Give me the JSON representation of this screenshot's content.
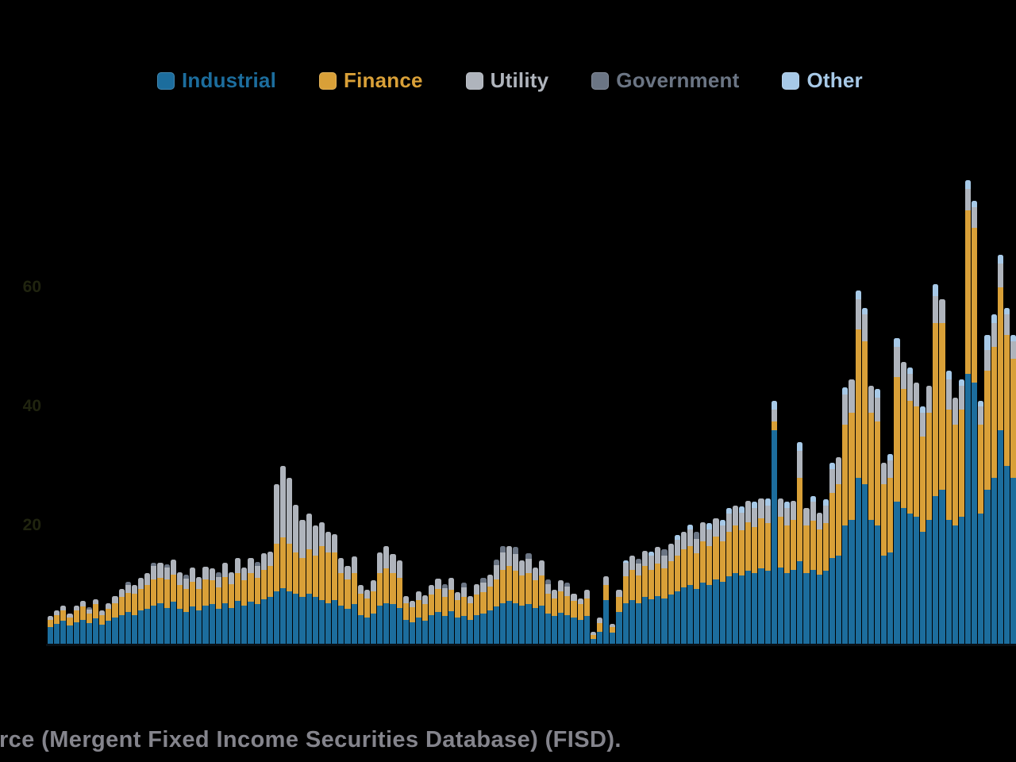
{
  "legend": {
    "items": [
      {
        "label": "Industrial",
        "color": "#1c6d9d"
      },
      {
        "label": "Finance",
        "color": "#d9a038"
      },
      {
        "label": "Utility",
        "color": "#afb4bc"
      },
      {
        "label": "Government",
        "color": "#6b7584"
      },
      {
        "label": "Other",
        "color": "#a7c9e7"
      }
    ]
  },
  "caption": {
    "text": "Source (Mergent Fixed Income Securities Database) (FISD)."
  },
  "chart_data": {
    "type": "bar",
    "stacked": true,
    "title": "",
    "xlabel": "",
    "ylabel": "",
    "ylim": [
      0,
      80
    ],
    "y_ticks": [
      20,
      40,
      60
    ],
    "x_axis_labels_visible": false,
    "gridlines": false,
    "legend_position": "top",
    "series": [
      {
        "name": "Industrial",
        "color": "#1c6d9d",
        "values": [
          3.0,
          3.5,
          4.0,
          3.2,
          3.8,
          4.2,
          3.6,
          4.4,
          3.4,
          4.0,
          4.5,
          5.0,
          5.5,
          5.0,
          5.8,
          6.0,
          6.5,
          7.0,
          6.2,
          7.2,
          6.0,
          5.5,
          6.4,
          5.8,
          6.6,
          6.8,
          6.0,
          7.0,
          6.2,
          7.4,
          6.6,
          7.2,
          6.8,
          7.6,
          8.0,
          9.0,
          9.5,
          9.0,
          8.5,
          8.0,
          8.5,
          8.0,
          7.5,
          7.0,
          7.5,
          6.5,
          6.0,
          6.8,
          5.0,
          4.6,
          5.2,
          6.5,
          7.0,
          6.8,
          6.2,
          4.2,
          3.8,
          4.5,
          4.0,
          5.0,
          5.5,
          4.8,
          5.6,
          4.5,
          4.8,
          4.2,
          5.0,
          5.2,
          5.8,
          6.4,
          7.0,
          7.4,
          7.0,
          6.6,
          6.8,
          6.2,
          6.6,
          5.2,
          4.8,
          5.4,
          5.0,
          4.6,
          4.2,
          4.8,
          1.0,
          2.2,
          7.5,
          2.0,
          5.5,
          7.0,
          7.5,
          7.0,
          8.0,
          7.6,
          8.2,
          7.8,
          8.4,
          9.0,
          9.6,
          10.0,
          9.4,
          10.4,
          10.0,
          11.0,
          10.6,
          11.5,
          12.0,
          11.6,
          12.4,
          12.0,
          12.8,
          12.4,
          36.0,
          13.0,
          12.0,
          12.6,
          14.0,
          12.0,
          12.6,
          11.8,
          12.4,
          14.5,
          15.0,
          20.0,
          21.0,
          28.0,
          27.0,
          21.0,
          20.0,
          15.0,
          15.5,
          24.0,
          23.0,
          22.0,
          21.5,
          19.0,
          21.0,
          25.0,
          26.0,
          21.0,
          20.0,
          21.5,
          45.5,
          44.0,
          22.0,
          26.0,
          28.0,
          36.0,
          30.0,
          28.0
        ]
      },
      {
        "name": "Finance",
        "color": "#d9a038",
        "values": [
          1.2,
          1.5,
          1.8,
          1.4,
          2.0,
          2.2,
          1.6,
          2.4,
          1.5,
          2.0,
          2.5,
          3.0,
          3.2,
          3.5,
          3.6,
          4.0,
          4.5,
          4.2,
          4.8,
          4.5,
          4.0,
          3.8,
          4.2,
          3.6,
          4.4,
          4.0,
          3.6,
          4.4,
          4.0,
          4.6,
          4.2,
          4.8,
          4.4,
          5.0,
          5.2,
          8.0,
          8.5,
          8.0,
          7.0,
          6.5,
          7.5,
          7.0,
          9.0,
          8.5,
          8.0,
          5.5,
          5.0,
          5.2,
          3.5,
          3.2,
          3.8,
          5.5,
          5.8,
          5.2,
          5.0,
          2.8,
          2.5,
          3.0,
          2.8,
          3.4,
          3.8,
          3.2,
          3.6,
          3.0,
          3.2,
          2.8,
          3.4,
          3.6,
          4.0,
          4.6,
          5.5,
          5.8,
          5.4,
          5.0,
          5.2,
          4.6,
          5.0,
          3.4,
          3.0,
          3.6,
          3.2,
          2.8,
          2.6,
          3.0,
          0.6,
          1.4,
          2.5,
          0.9,
          2.5,
          4.5,
          5.0,
          4.6,
          5.2,
          5.0,
          5.4,
          5.0,
          5.6,
          6.0,
          6.4,
          6.6,
          6.0,
          7.0,
          6.6,
          7.2,
          6.8,
          7.5,
          8.0,
          7.6,
          8.2,
          7.8,
          8.4,
          8.0,
          1.5,
          8.5,
          8.0,
          8.4,
          14.0,
          8.0,
          8.2,
          7.6,
          8.0,
          11.0,
          12.0,
          17.0,
          18.0,
          25.0,
          24.0,
          18.0,
          17.5,
          12.0,
          12.5,
          21.0,
          20.0,
          19.0,
          18.5,
          16.0,
          18.0,
          29.0,
          28.0,
          18.5,
          17.0,
          18.0,
          27.5,
          26.0,
          15.0,
          20.0,
          22.0,
          24.0,
          22.0,
          20.0
        ]
      },
      {
        "name": "Utility",
        "color": "#afb4bc",
        "values": [
          0.6,
          0.8,
          0.7,
          0.6,
          0.8,
          0.9,
          0.7,
          0.8,
          0.9,
          1.0,
          1.2,
          1.4,
          1.3,
          1.5,
          1.8,
          2.0,
          2.2,
          2.5,
          2.0,
          2.6,
          2.2,
          1.8,
          2.4,
          2.0,
          2.1,
          2.0,
          1.8,
          2.4,
          2.0,
          2.5,
          2.2,
          2.6,
          2.0,
          2.8,
          2.4,
          10.0,
          12.0,
          11.0,
          8.0,
          6.5,
          6.0,
          5.0,
          4.0,
          3.5,
          3.0,
          2.5,
          2.2,
          2.8,
          1.5,
          1.4,
          1.8,
          3.5,
          3.8,
          3.2,
          3.0,
          1.2,
          1.0,
          1.4,
          1.5,
          1.6,
          1.8,
          1.5,
          2.0,
          1.3,
          1.6,
          1.2,
          1.8,
          1.6,
          2.0,
          2.4,
          3.0,
          3.4,
          2.8,
          2.6,
          2.4,
          2.2,
          2.6,
          1.6,
          1.4,
          1.8,
          1.5,
          1.2,
          1.0,
          1.4,
          0.5,
          0.9,
          1.5,
          0.6,
          1.2,
          2.2,
          2.5,
          2.0,
          2.6,
          2.4,
          2.8,
          2.2,
          3.0,
          2.6,
          3.0,
          2.8,
          2.4,
          3.2,
          2.8,
          3.0,
          2.6,
          3.0,
          3.4,
          3.0,
          3.6,
          3.2,
          3.4,
          3.0,
          2.0,
          3.0,
          3.0,
          3.2,
          4.5,
          3.0,
          3.2,
          2.8,
          3.0,
          4.0,
          4.5,
          5.0,
          5.5,
          5.0,
          4.5,
          4.5,
          4.0,
          3.5,
          3.0,
          5.0,
          4.5,
          4.5,
          4.0,
          4.0,
          4.5,
          4.5,
          4.0,
          5.0,
          4.5,
          4.0,
          3.6,
          3.5,
          3.0,
          3.5,
          4.0,
          4.0,
          3.5,
          3.0
        ]
      },
      {
        "name": "Government",
        "color": "#6b7584",
        "values": [
          0,
          0,
          0,
          0,
          0,
          0,
          0.4,
          0,
          0,
          0,
          0,
          0,
          0.5,
          0,
          0,
          0,
          0.6,
          0,
          0.5,
          0,
          0,
          0.6,
          0,
          0,
          0,
          0,
          0.8,
          0,
          0,
          0,
          0,
          0,
          0.7,
          0,
          0,
          0,
          0,
          0,
          0,
          0,
          0,
          0,
          0,
          0,
          0,
          0,
          0,
          0,
          0,
          0,
          0,
          0,
          0,
          0,
          0,
          0,
          0,
          0,
          0,
          0,
          0,
          0.6,
          0,
          0,
          0.8,
          0,
          0,
          0.8,
          0,
          0.9,
          1.0,
          0,
          1.2,
          0,
          1.0,
          0,
          0,
          0.8,
          0,
          0,
          0.7,
          0,
          0,
          0,
          0,
          0,
          0,
          0,
          0,
          0,
          0,
          0.8,
          0,
          0,
          0,
          1.0,
          0,
          0,
          0,
          0,
          1.2,
          0,
          0,
          0,
          0,
          0,
          0,
          0,
          0,
          0,
          0,
          0,
          0,
          0,
          0,
          0,
          0,
          0,
          0,
          0,
          0,
          0,
          0,
          0,
          0,
          0,
          0,
          0,
          0,
          0,
          0,
          0,
          0,
          0,
          0,
          0,
          0,
          0,
          0,
          0,
          0,
          0,
          0,
          0,
          0,
          0,
          0,
          0,
          0,
          0
        ]
      },
      {
        "name": "Other",
        "color": "#a7c9e7",
        "values": [
          0,
          0,
          0,
          0,
          0,
          0,
          0,
          0,
          0,
          0,
          0,
          0,
          0,
          0,
          0,
          0,
          0,
          0,
          0,
          0,
          0,
          0,
          0,
          0,
          0,
          0,
          0,
          0,
          0,
          0,
          0,
          0,
          0,
          0,
          0,
          0,
          0,
          0,
          0,
          0,
          0,
          0,
          0,
          0,
          0,
          0,
          0,
          0,
          0,
          0,
          0,
          0,
          0,
          0,
          0,
          0,
          0,
          0,
          0,
          0,
          0,
          0,
          0,
          0,
          0,
          0,
          0,
          0,
          0,
          0,
          0,
          0,
          0,
          0,
          0,
          0,
          0,
          0,
          0,
          0,
          0,
          0,
          0,
          0,
          0,
          0,
          0,
          0,
          0,
          0.5,
          0,
          0,
          0,
          0.6,
          0,
          0,
          0,
          0.8,
          0,
          0.8,
          0,
          0,
          1.0,
          0,
          0.9,
          0.9,
          0,
          1.0,
          0,
          1.0,
          0,
          1.1,
          1.5,
          0,
          1.0,
          0,
          1.5,
          0,
          1.0,
          0,
          1.0,
          1.0,
          0,
          1.2,
          0,
          1.5,
          1.0,
          0,
          1.5,
          0,
          1.0,
          1.5,
          0,
          1.0,
          0,
          1.0,
          0,
          2.0,
          0,
          1.5,
          0,
          1.0,
          1.4,
          1.0,
          1.0,
          2.5,
          1.5,
          1.5,
          1.0,
          1.0
        ]
      }
    ]
  }
}
